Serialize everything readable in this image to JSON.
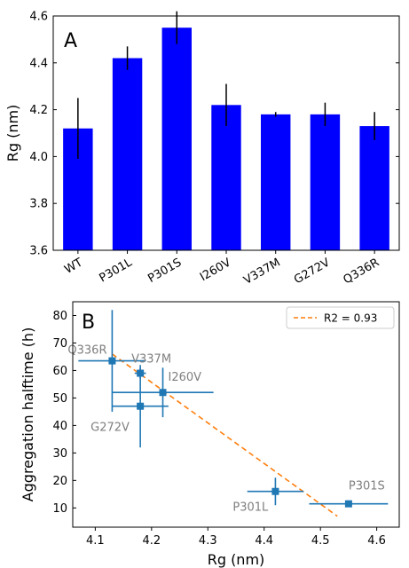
{
  "chart_data": [
    {
      "type": "bar",
      "panel_label": "A",
      "categories": [
        "WT",
        "P301L",
        "P301S",
        "I260V",
        "V337M",
        "G272V",
        "Q336R"
      ],
      "values": [
        4.12,
        4.42,
        4.55,
        4.22,
        4.18,
        4.18,
        4.13
      ],
      "errors": [
        0.13,
        0.05,
        0.07,
        0.09,
        0.01,
        0.05,
        0.06
      ],
      "ylabel": "Rg (nm)",
      "xlabel": "",
      "ylim": [
        3.6,
        4.6
      ],
      "yticks": [
        "3.6",
        "3.8",
        "4.0",
        "4.2",
        "4.4",
        "4.6"
      ],
      "bar_color": "#0000ff",
      "grid": false
    },
    {
      "type": "scatter",
      "panel_label": "B",
      "points": [
        {
          "label": "Q336R",
          "x": 4.13,
          "y": 63.5,
          "xerr": 0.06,
          "yerr": 18.5
        },
        {
          "label": "V337M",
          "x": 4.18,
          "y": 59,
          "xerr": 0.01,
          "yerr": 2
        },
        {
          "label": "I260V",
          "x": 4.22,
          "y": 52,
          "xerr": 0.09,
          "yerr": 9
        },
        {
          "label": "G272V",
          "x": 4.18,
          "y": 47,
          "xerr": 0.05,
          "yerr": 15
        },
        {
          "label": "P301L",
          "x": 4.42,
          "y": 16,
          "xerr": 0.05,
          "yerr": 5
        },
        {
          "label": "P301S",
          "x": 4.55,
          "y": 11.5,
          "xerr": 0.07,
          "yerr": 1
        }
      ],
      "fit_line": {
        "x": [
          4.13,
          4.53
        ],
        "y": [
          66,
          7
        ]
      },
      "legend": {
        "label": "R2 = 0.93",
        "placement": "top-right"
      },
      "xlabel": "Rg (nm)",
      "ylabel": "Aggregation halftime (h)",
      "xlim": [
        4.06,
        4.64
      ],
      "ylim": [
        3,
        85
      ],
      "xticks": [
        "4.1",
        "4.2",
        "4.3",
        "4.4",
        "4.5",
        "4.6"
      ],
      "yticks": [
        "10",
        "20",
        "30",
        "40",
        "50",
        "60",
        "70",
        "80"
      ],
      "point_color": "#1f77b4",
      "line_color": "#ff7f0e",
      "label_color": "#7f7f7f",
      "grid": false
    }
  ]
}
